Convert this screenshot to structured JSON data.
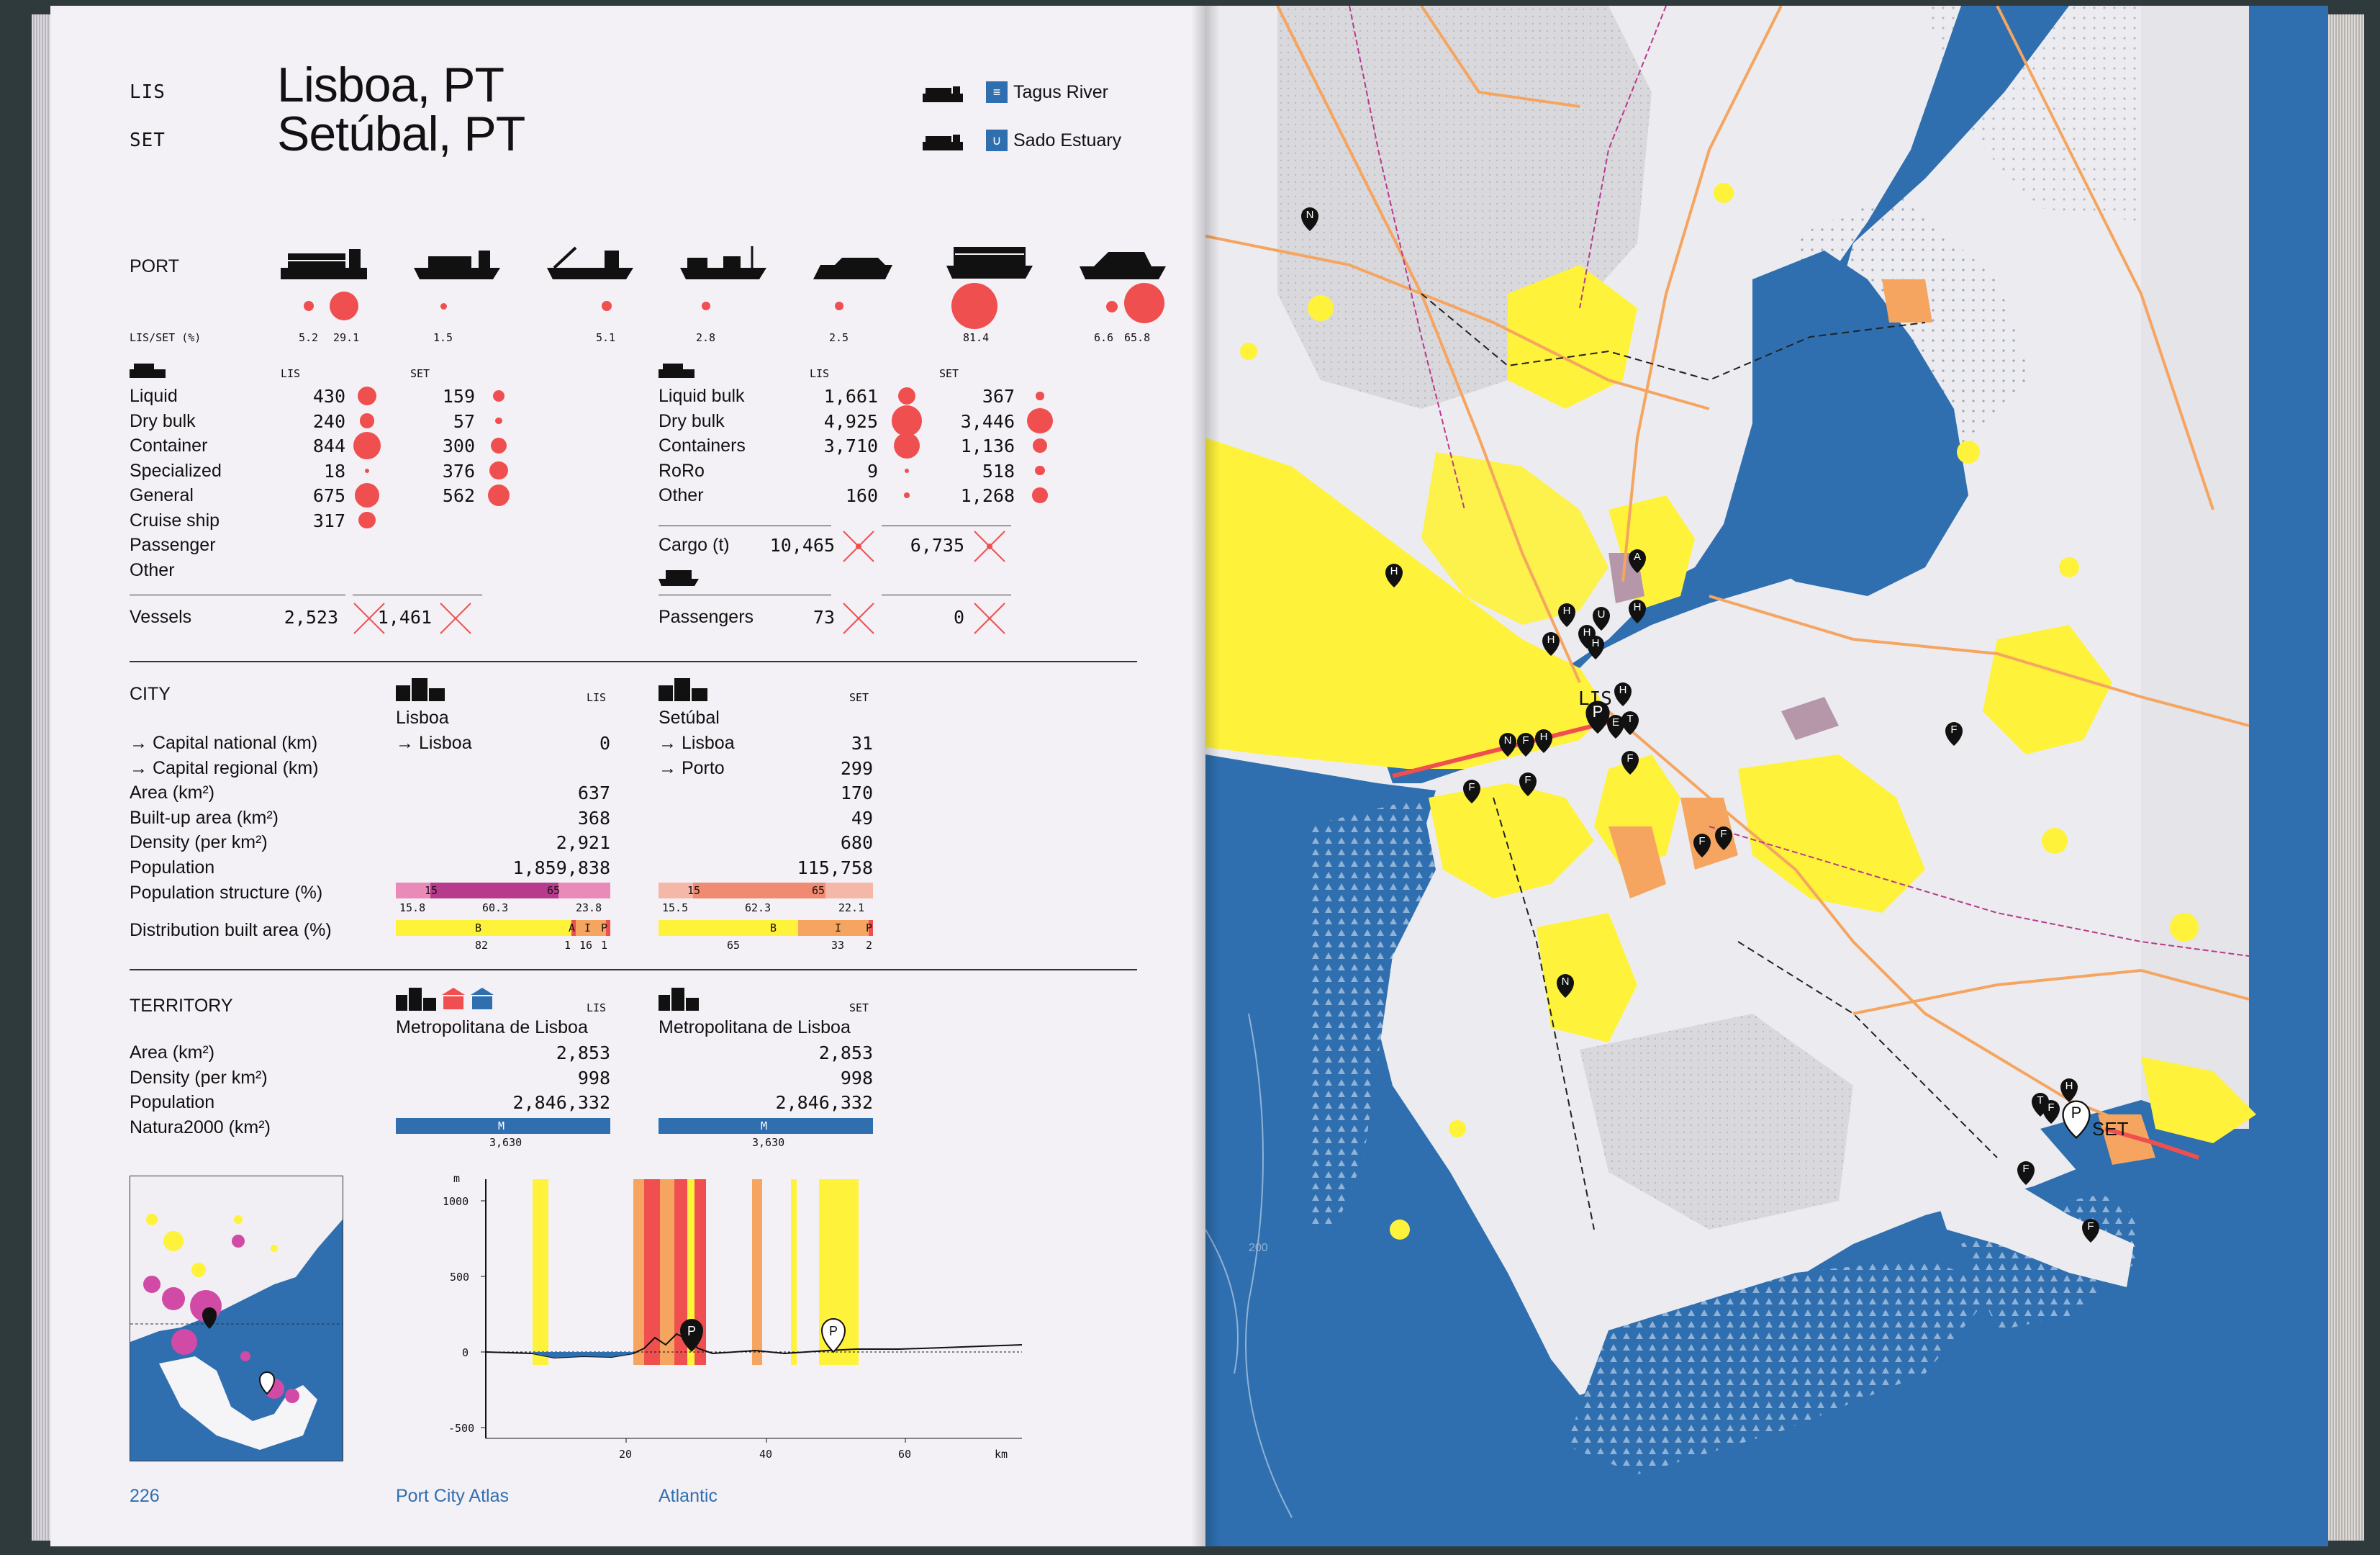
{
  "header": {
    "code_lis": "LIS",
    "code_set": "SET",
    "title_lis": "Lisboa, PT",
    "title_set": "Setúbal, PT",
    "water_lis": "Tagus River",
    "water_set": "Sado Estuary"
  },
  "port": {
    "section": "PORT",
    "share_label": "LIS/SET (%)",
    "shares": [
      "5.2",
      "29.1",
      "1.5",
      "5.1",
      "2.8",
      "2.5",
      "81.4",
      "6.6",
      "65.8"
    ],
    "vessels_header": {
      "lis": "LIS",
      "set": "SET"
    },
    "vessel_types": [
      {
        "name": "Liquid",
        "lis": "430",
        "set": "159"
      },
      {
        "name": "Dry bulk",
        "lis": "240",
        "set": "57"
      },
      {
        "name": "Container",
        "lis": "844",
        "set": "300"
      },
      {
        "name": "Specialized",
        "lis": "18",
        "set": "376"
      },
      {
        "name": "General",
        "lis": "675",
        "set": "562"
      },
      {
        "name": "Cruise ship",
        "lis": "317",
        "set": ""
      },
      {
        "name": "Passenger",
        "lis": "",
        "set": ""
      },
      {
        "name": "Other",
        "lis": "",
        "set": ""
      }
    ],
    "vessels_total": {
      "label": "Vessels",
      "lis": "2,523",
      "set": "1,461"
    },
    "cargo_header": {
      "lis": "LIS",
      "set": "SET"
    },
    "cargo_types": [
      {
        "name": "Liquid bulk",
        "lis": "1,661",
        "set": "367"
      },
      {
        "name": "Dry bulk",
        "lis": "4,925",
        "set": "3,446"
      },
      {
        "name": "Containers",
        "lis": "3,710",
        "set": "1,136"
      },
      {
        "name": "RoRo",
        "lis": "9",
        "set": "518"
      },
      {
        "name": "Other",
        "lis": "160",
        "set": "1,268"
      }
    ],
    "cargo_total": {
      "label": "Cargo (t)",
      "lis": "10,465",
      "set": "6,735"
    },
    "passengers": {
      "label": "Passengers",
      "lis": "73",
      "set": "0"
    }
  },
  "city": {
    "section": "CITY",
    "lis_code": "LIS",
    "set_code": "SET",
    "lis_name": "Lisboa",
    "set_name": "Setúbal",
    "rows": [
      {
        "label": "→ Capital national (km)",
        "lis_ref": "→ Lisboa",
        "lis": "0",
        "set_ref": "→ Lisboa",
        "set": "31"
      },
      {
        "label": "→ Capital regional (km)",
        "lis_ref": "",
        "lis": "",
        "set_ref": "→ Porto",
        "set": "299"
      },
      {
        "label": "Area (km²)",
        "lis_ref": "",
        "lis": "637",
        "set_ref": "",
        "set": "170"
      },
      {
        "label": "Built-up area (km²)",
        "lis_ref": "",
        "lis": "368",
        "set_ref": "",
        "set": "49"
      },
      {
        "label": "Density (per km²)",
        "lis_ref": "",
        "lis": "2,921",
        "set_ref": "",
        "set": "680"
      },
      {
        "label": "Population",
        "lis_ref": "",
        "lis": "1,859,838",
        "set_ref": "",
        "set": "115,758"
      }
    ],
    "pop_structure_label": "Population structure (%)",
    "pop_lis": {
      "marks": [
        "15",
        "65"
      ],
      "values": [
        "15.8",
        "60.3",
        "23.8"
      ]
    },
    "pop_set": {
      "marks": [
        "15",
        "65"
      ],
      "values": [
        "15.5",
        "62.3",
        "22.1"
      ]
    },
    "dist_label": "Distribution built area (%)",
    "dist_lis": {
      "marks": [
        "B",
        "A",
        "I",
        "P"
      ],
      "values": [
        "82",
        "1",
        "16",
        "1"
      ]
    },
    "dist_set": {
      "marks": [
        "B",
        "I",
        "P"
      ],
      "values": [
        "65",
        "33",
        "2"
      ]
    }
  },
  "territory": {
    "section": "TERRITORY",
    "lis_code": "LIS",
    "set_code": "SET",
    "lis_name": "Metropolitana de Lisboa",
    "set_name": "Metropolitana de Lisboa",
    "rows": [
      {
        "label": "Area (km²)",
        "lis": "2,853",
        "set": "2,853"
      },
      {
        "label": "Density (per km²)",
        "lis": "998",
        "set": "998"
      },
      {
        "label": "Population",
        "lis": "2,846,332",
        "set": "2,846,332"
      },
      {
        "label": "Natura2000 (km²)",
        "lis": "",
        "set": ""
      }
    ],
    "natura_mark": "M",
    "natura_lis": "3,630",
    "natura_set": "3,630"
  },
  "profile": {
    "y_unit": "m",
    "x_unit": "km",
    "y_ticks": [
      "1000",
      "500",
      "0",
      "-500"
    ],
    "x_ticks": [
      "20",
      "40",
      "60"
    ],
    "marker": "P"
  },
  "footer": {
    "page_number": "226",
    "book": "Port City Atlas",
    "region": "Atlantic"
  },
  "map": {
    "lis_label": "LIS",
    "set_label": "SET",
    "pins": [
      "N",
      "H",
      "A",
      "H",
      "H",
      "U",
      "H",
      "H",
      "H",
      "H",
      "P",
      "T",
      "E",
      "N",
      "F",
      "H",
      "F",
      "F",
      "F",
      "F",
      "F",
      "F",
      "T",
      "H",
      "F",
      "F",
      "F",
      "N"
    ],
    "depth": "200"
  },
  "colors": {
    "accent_red": "#f04f4f",
    "sea_blue": "#2f6fb0",
    "urban_yellow": "#fff23a",
    "industrial_orange": "#f5a560",
    "magenta": "#b83a8c"
  }
}
